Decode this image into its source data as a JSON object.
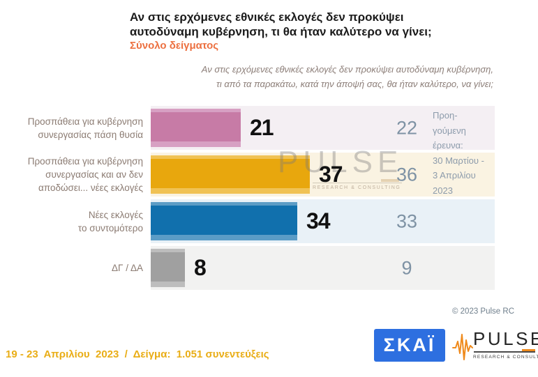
{
  "header": {
    "title": "Αν στις ερχόμενες εθνικές εκλογές δεν προκύψει\nαυτοδύναμη κυβέρνηση, τι θα ήταν καλύτερο να γίνει;",
    "subtitle": "Σύνολο δείγματος",
    "question": "Αν στις ερχόμενες εθνικές εκλογές δεν προκύψει αυτοδύναμη κυβέρνηση,\nτι από τα παρακάτω, κατά την άποψή σας, θα ήταν καλύτερο, να γίνει;"
  },
  "chart_data": {
    "type": "bar",
    "orientation": "horizontal",
    "title": "Αν στις ερχόμενες εθνικές εκλογές δεν προκύψει αυτοδύναμη κυβέρνηση, τι θα ήταν καλύτερο να γίνει;",
    "categories": [
      "Προσπάθεια για κυβέρνηση\nσυνεργασίας πάση θυσία",
      "Προσπάθεια για κυβέρνηση\nσυνεργασίας και αν δεν\nαποδώσει... νέες εκλογές",
      "Νέες εκλογές\nτο συντομότερο",
      "ΔΓ / ΔΑ"
    ],
    "series": [
      {
        "name": "19 - 23 Απριλίου 2023",
        "values": [
          21,
          37,
          34,
          8
        ]
      },
      {
        "name": "Προηγούμενη έρευνα: 30 Μαρτίου - 3 Απριλίου 2023",
        "values": [
          22,
          36,
          33,
          9
        ]
      }
    ],
    "xlim": [
      0,
      80
    ],
    "legend_position": "right",
    "grid": false,
    "bar_colors": [
      "#c77ba6",
      "#e8a70d",
      "#1170ad",
      "#a0a0a0"
    ],
    "bar_colors_light": [
      "#d7a0c3",
      "#f0c254",
      "#5b9cc6",
      "#bdbdbd"
    ],
    "row_backgrounds": [
      "#f4eff3",
      "#faf3e2",
      "#e9f1f7",
      "#f2f2f1"
    ],
    "value_color": "#111111",
    "prev_value_color": "#7e92a4"
  },
  "previous_note": "Προη-\nγούμενη\nέρευνα:\n30 Μαρτίου -\n3 Απριλίου\n2023",
  "watermark": {
    "text": "PULSE",
    "sub": "RESEARCH & CONSULTING"
  },
  "footer": {
    "copyright": "© 2023 Pulse RC",
    "fieldwork": "19 - 23  Απριλίου  2023  /  Δείγμα:  1.051 συνεντεύξεις",
    "skai_logo_text": "ΣΚΑΪ",
    "pulse_logo_text": "PULSE",
    "pulse_logo_sub": "RESEARCH & CONSULTING"
  }
}
